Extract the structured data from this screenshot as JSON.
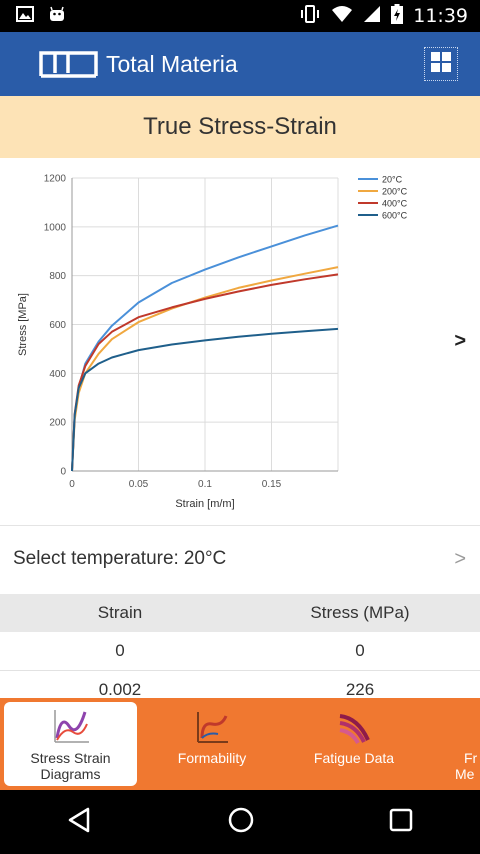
{
  "status_bar": {
    "time": "11:39",
    "left_icons": [
      "gallery-icon",
      "android-icon"
    ],
    "right_icons": [
      "vibrate-icon",
      "wifi-icon",
      "cellular-icon",
      "battery-icon"
    ]
  },
  "app_bar": {
    "title": "Total Materia",
    "brand_color": "#2a5ca8"
  },
  "page": {
    "title": "True Stress-Strain"
  },
  "chart_next": ">",
  "temperature": {
    "label": "Select temperature:",
    "value": "20°C",
    "chevron": ">"
  },
  "table": {
    "headers": [
      "Strain",
      "Stress (MPa)"
    ],
    "rows": [
      [
        "0",
        "0"
      ],
      [
        "0.002",
        "226"
      ]
    ]
  },
  "tabs": [
    {
      "line1": "Stress Strain",
      "line2": "Diagrams",
      "icon": "stress-strain-icon",
      "active": true
    },
    {
      "line1": "Formability",
      "line2": "",
      "icon": "formability-icon",
      "active": false
    },
    {
      "line1": "Fatigue Data",
      "line2": "",
      "icon": "fatigue-icon",
      "active": false
    },
    {
      "line1": "Fr",
      "line2": "Me",
      "icon": "fracture-icon",
      "active": false
    }
  ],
  "colors": {
    "accent_orange": "#f07830",
    "header_band": "#fde3b6"
  },
  "chart_data": {
    "type": "line",
    "title": "",
    "xlabel": "Strain [m/m]",
    "ylabel": "Stress [MPa]",
    "xlim": [
      0,
      0.2
    ],
    "ylim": [
      0,
      1200
    ],
    "xticks": [
      "0",
      "0.05",
      "0.1",
      "0.15"
    ],
    "yticks": [
      "0",
      "200",
      "400",
      "600",
      "800",
      "1000",
      "1200"
    ],
    "grid": true,
    "legend_position": "top-right",
    "series": [
      {
        "name": "20°C",
        "color": "#4a90d9",
        "x": [
          0,
          0.002,
          0.005,
          0.01,
          0.02,
          0.03,
          0.05,
          0.075,
          0.1,
          0.125,
          0.15,
          0.175,
          0.2
        ],
        "y": [
          0,
          226,
          340,
          440,
          530,
          595,
          690,
          770,
          825,
          875,
          920,
          965,
          1005
        ]
      },
      {
        "name": "200°C",
        "color": "#f0a840",
        "x": [
          0,
          0.002,
          0.005,
          0.01,
          0.02,
          0.03,
          0.05,
          0.075,
          0.1,
          0.125,
          0.15,
          0.175,
          0.2
        ],
        "y": [
          0,
          210,
          320,
          400,
          480,
          540,
          610,
          665,
          710,
          750,
          780,
          808,
          835
        ]
      },
      {
        "name": "400°C",
        "color": "#c0392b",
        "x": [
          0,
          0.002,
          0.005,
          0.01,
          0.02,
          0.03,
          0.05,
          0.075,
          0.1,
          0.125,
          0.15,
          0.175,
          0.2
        ],
        "y": [
          0,
          235,
          350,
          430,
          520,
          570,
          630,
          670,
          705,
          735,
          762,
          785,
          805
        ]
      },
      {
        "name": "600°C",
        "color": "#1f5f8b",
        "x": [
          0,
          0.002,
          0.005,
          0.01,
          0.02,
          0.03,
          0.05,
          0.075,
          0.1,
          0.125,
          0.15,
          0.175,
          0.2
        ],
        "y": [
          0,
          230,
          340,
          400,
          440,
          465,
          495,
          518,
          535,
          550,
          562,
          572,
          582
        ]
      }
    ]
  }
}
